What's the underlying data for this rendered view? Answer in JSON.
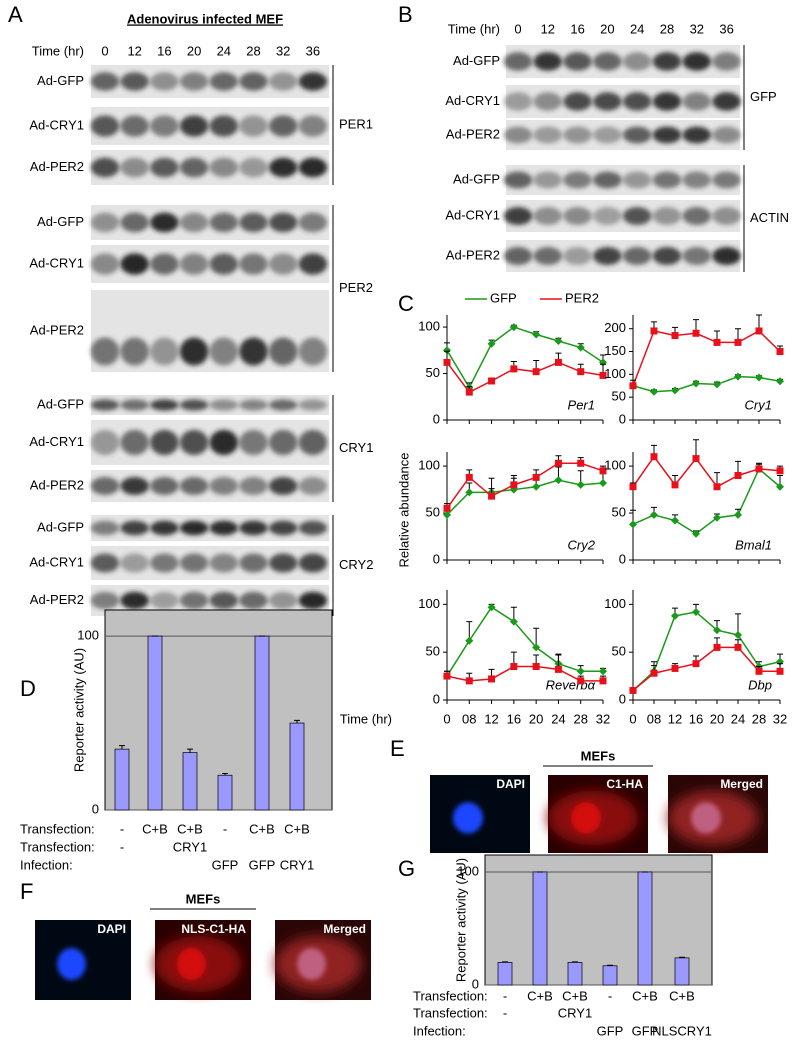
{
  "panel_labels": [
    "A",
    "B",
    "C",
    "D",
    "E",
    "F",
    "G"
  ],
  "blot_a": {
    "title": "Adenovirus infected MEF",
    "time_label": "Time (hr)",
    "times": [
      0,
      12,
      16,
      20,
      24,
      28,
      32,
      36
    ],
    "groups": [
      {
        "name": "PER1",
        "rows": [
          "Ad-GFP",
          "Ad-CRY1",
          "Ad-PER2"
        ]
      },
      {
        "name": "PER2",
        "rows": [
          "Ad-GFP",
          "Ad-CRY1",
          "Ad-PER2"
        ]
      },
      {
        "name": "CRY1",
        "rows": [
          "Ad-GFP",
          "Ad-CRY1",
          "Ad-PER2"
        ]
      },
      {
        "name": "CRY2",
        "rows": [
          "Ad-GFP",
          "Ad-CRY1",
          "Ad-PER2"
        ]
      }
    ]
  },
  "blot_b": {
    "time_label": "Time (hr)",
    "times": [
      0,
      12,
      16,
      20,
      24,
      28,
      32,
      36
    ],
    "groups": [
      {
        "name": "GFP",
        "rows": [
          "Ad-GFP",
          "Ad-CRY1",
          "Ad-PER2"
        ]
      },
      {
        "name": "ACTIN",
        "rows": [
          "Ad-GFP",
          "Ad-CRY1",
          "Ad-PER2"
        ]
      }
    ]
  },
  "chart_data": [
    {
      "type": "line",
      "x_label": "Time (hr)",
      "y_label": "Relative abundance",
      "categories": [
        "0",
        "08",
        "12",
        "16",
        "20",
        "24",
        "28",
        "32"
      ],
      "legend": [
        {
          "name": "GFP",
          "color": "#1a9a1a"
        },
        {
          "name": "PER2",
          "color": "#e8101a"
        }
      ],
      "subplots": [
        {
          "title": "Per1",
          "ylim": [
            0,
            113
          ],
          "yticks": [
            0,
            50,
            100
          ],
          "series": [
            {
              "values": [
                75,
                35,
                82,
                100,
                92,
                85,
                78,
                62
              ],
              "errors": [
                8,
                5,
                4,
                2,
                3,
                3,
                4,
                8
              ]
            },
            {
              "values": [
                62,
                30,
                42,
                55,
                52,
                62,
                52,
                48
              ],
              "errors": [
                12,
                6,
                3,
                8,
                12,
                10,
                8,
                12
              ]
            }
          ]
        },
        {
          "title": "Cry1",
          "ylim": [
            0,
            230
          ],
          "yticks": [
            0,
            50,
            100,
            150,
            200
          ],
          "series": [
            {
              "values": [
                75,
                62,
                65,
                80,
                78,
                95,
                93,
                85
              ],
              "errors": [
                5,
                4,
                4,
                5,
                5,
                4,
                4,
                4
              ]
            },
            {
              "values": [
                75,
                195,
                185,
                190,
                170,
                170,
                195,
                150
              ],
              "errors": [
                12,
                20,
                18,
                30,
                25,
                30,
                35,
                12
              ]
            }
          ]
        },
        {
          "title": "Cry2",
          "ylim": [
            0,
            115
          ],
          "yticks": [
            0,
            50,
            100
          ],
          "series": [
            {
              "values": [
                48,
                72,
                72,
                75,
                78,
                85,
                80,
                82
              ],
              "errors": [
                8,
                10,
                15,
                12,
                12,
                14,
                15,
                10
              ]
            },
            {
              "values": [
                55,
                88,
                68,
                80,
                88,
                103,
                103,
                95
              ],
              "errors": [
                5,
                8,
                8,
                10,
                8,
                8,
                6,
                5
              ]
            }
          ]
        },
        {
          "title": "Bmal1",
          "ylim": [
            0,
            115
          ],
          "yticks": [
            0,
            50,
            100
          ],
          "series": [
            {
              "values": [
                38,
                48,
                42,
                28,
                45,
                48,
                97,
                78
              ],
              "errors": [
                15,
                8,
                6,
                3,
                4,
                6,
                6,
                12
              ]
            },
            {
              "values": [
                78,
                110,
                80,
                108,
                78,
                90,
                97,
                95
              ],
              "errors": [
                4,
                12,
                10,
                20,
                15,
                15,
                5,
                5
              ]
            }
          ]
        },
        {
          "title": "Reverbα",
          "ylim": [
            0,
            115
          ],
          "yticks": [
            0,
            50,
            100
          ],
          "series": [
            {
              "values": [
                25,
                62,
                97,
                82,
                55,
                38,
                30,
                30
              ],
              "errors": [
                5,
                20,
                3,
                15,
                20,
                10,
                6,
                3
              ]
            },
            {
              "values": [
                25,
                20,
                22,
                35,
                35,
                32,
                20,
                20
              ],
              "errors": [
                5,
                8,
                10,
                15,
                12,
                15,
                5,
                5
              ]
            }
          ]
        },
        {
          "title": "Dbp",
          "ylim": [
            0,
            115
          ],
          "yticks": [
            0,
            50,
            100
          ],
          "series": [
            {
              "values": [
                10,
                30,
                88,
                92,
                73,
                68,
                35,
                40
              ],
              "errors": [
                3,
                10,
                8,
                8,
                10,
                22,
                5,
                8
              ]
            },
            {
              "values": [
                10,
                28,
                33,
                38,
                55,
                55,
                30,
                30
              ],
              "errors": [
                3,
                8,
                5,
                8,
                10,
                8,
                5,
                8
              ]
            }
          ]
        }
      ]
    },
    {
      "type": "bar",
      "y_label": "Reporter activity (AU)",
      "values": [
        35,
        100,
        33,
        20,
        100,
        50
      ],
      "errors": [
        2,
        0,
        2,
        1,
        0,
        1.5
      ],
      "ylim": [
        0,
        115
      ],
      "yticks": [
        0,
        100
      ],
      "color": "#9999ff",
      "grid": true,
      "rows": [
        {
          "label": "Transfection:",
          "cells": [
            "-",
            "C+B",
            "C+B",
            "-",
            "C+B",
            "C+B"
          ]
        },
        {
          "label": "Transfection:",
          "cells": [
            "-",
            null,
            "CRY1",
            null,
            null,
            null
          ]
        },
        {
          "label": "Infection:",
          "cells": [
            null,
            null,
            null,
            "GFP",
            "GFP",
            "CRY1"
          ]
        }
      ]
    },
    {
      "type": "bar",
      "y_label": "Reporter activity (AU)",
      "values": [
        20,
        100,
        20,
        17,
        100,
        24
      ],
      "errors": [
        0.5,
        0,
        0.5,
        0.5,
        0,
        0.5
      ],
      "ylim": [
        0,
        115
      ],
      "yticks": [
        0,
        100
      ],
      "color": "#9999ff",
      "grid": true,
      "rows": [
        {
          "label": "Transfection:",
          "cells": [
            "-",
            "C+B",
            "C+B",
            "-",
            "C+B",
            "C+B"
          ]
        },
        {
          "label": "Transfection:",
          "cells": [
            "-",
            null,
            "CRY1",
            null,
            null,
            null
          ]
        },
        {
          "label": "Infection:",
          "cells": [
            null,
            null,
            null,
            "GFP",
            "GFP",
            "NLSCRY1"
          ]
        }
      ]
    }
  ],
  "image_e": {
    "header": "MEFs",
    "labels": [
      "DAPI",
      "C1-HA",
      "Merged"
    ]
  },
  "image_f": {
    "header": "MEFs",
    "labels": [
      "DAPI",
      "NLS-C1-HA",
      "Merged"
    ]
  }
}
